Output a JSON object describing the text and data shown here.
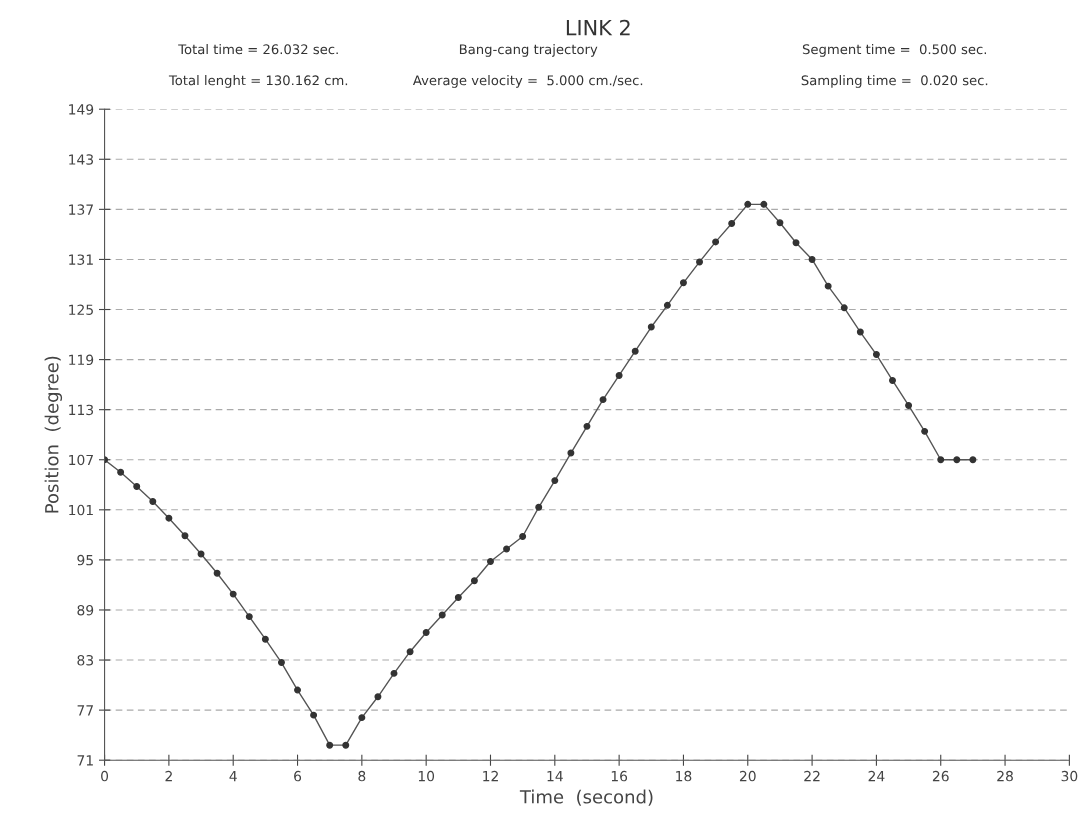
{
  "chart_data": {
    "type": "line",
    "title": "LINK 2",
    "xlabel": "Time  (second)",
    "ylabel": "Position  (degree)",
    "annotations": [
      "Total time = 26.032 sec.",
      "Bang-cang trajectory",
      "Segment time =  0.500 sec.",
      "Total lenght = 130.162 cm.",
      "Average velocity =  5.000 cm./sec.",
      "Sampling time =  0.020 sec."
    ],
    "x": [
      0,
      0.5,
      1,
      1.5,
      2,
      2.5,
      3,
      3.5,
      4,
      4.5,
      5,
      5.5,
      6,
      6.5,
      7,
      7.5,
      8,
      8.5,
      9,
      9.5,
      10,
      10.5,
      11,
      11.5,
      12,
      12.5,
      13,
      13.5,
      14,
      14.5,
      15,
      15.5,
      16,
      16.5,
      17,
      17.5,
      18,
      18.5,
      19,
      19.5,
      20,
      20.5,
      21,
      21.5,
      22,
      22.5,
      23,
      23.5,
      24,
      24.5,
      25,
      25.5,
      26,
      26.5,
      27
    ],
    "series": [
      {
        "color": "#555555",
        "values": [
          107,
          105.5,
          103.8,
          102,
          100,
          97.9,
          95.7,
          93.4,
          90.9,
          88.2,
          85.5,
          82.7,
          79.4,
          76.4,
          72.8,
          72.8,
          76.1,
          78.6,
          81.4,
          84,
          86.3,
          88.4,
          90.5,
          92.5,
          94.8,
          96.3,
          97.8,
          101.3,
          104.5,
          107.8,
          111,
          114.2,
          117.1,
          120,
          122.9,
          125.5,
          128.2,
          130.7,
          133.1,
          135.3,
          137.6,
          137.6,
          135.4,
          133,
          131,
          127.8,
          125.2,
          122.3,
          119.6,
          116.5,
          113.5,
          110.4,
          107,
          107,
          107
        ]
      }
    ],
    "xlim": [
      0,
      30
    ],
    "xticks": [
      0,
      2,
      4,
      6,
      8,
      10,
      12,
      14,
      16,
      18,
      20,
      22,
      24,
      26,
      28,
      30
    ],
    "ylim": [
      71,
      149
    ],
    "yticks": [
      71,
      77,
      83,
      89,
      95,
      101,
      107,
      113,
      119,
      125,
      131,
      137,
      143,
      149
    ],
    "grid": "y",
    "marker": "circle",
    "line_style": "solid"
  }
}
